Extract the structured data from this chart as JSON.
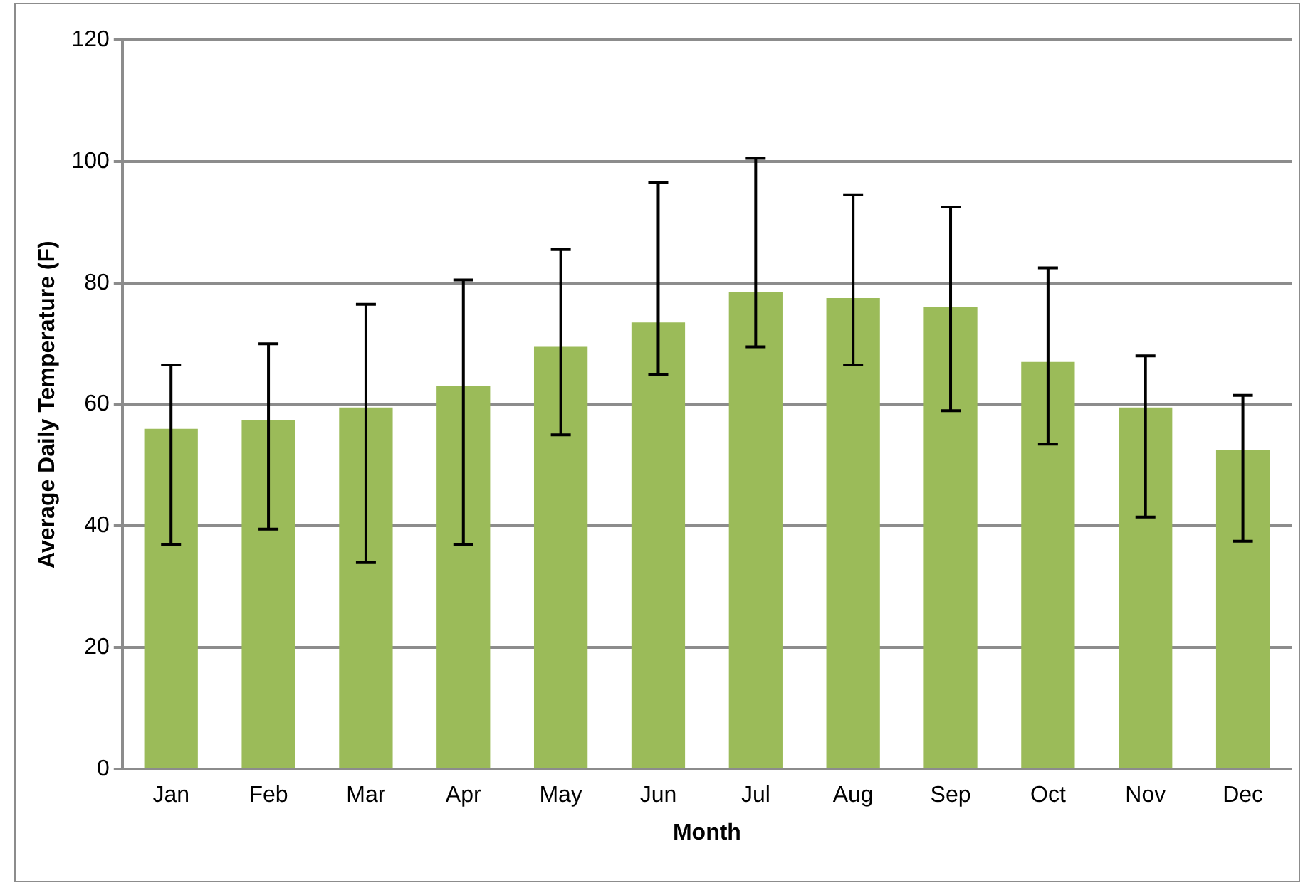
{
  "chart_data": {
    "type": "bar",
    "xlabel": "Month",
    "ylabel": "Average Daily Temperature (F)",
    "categories": [
      "Jan",
      "Feb",
      "Mar",
      "Apr",
      "May",
      "Jun",
      "Jul",
      "Aug",
      "Sep",
      "Oct",
      "Nov",
      "Dec"
    ],
    "values": [
      56,
      57.5,
      59.5,
      63,
      69.5,
      73.5,
      78.5,
      77.5,
      76,
      67,
      59.5,
      52.5
    ],
    "errors": [
      [
        37,
        66.5
      ],
      [
        39.5,
        70
      ],
      [
        34,
        76.5
      ],
      [
        37,
        80.5
      ],
      [
        55,
        85.5
      ],
      [
        65,
        96.5
      ],
      [
        69.5,
        100.5
      ],
      [
        66.5,
        94.5
      ],
      [
        59,
        92.5
      ],
      [
        53.5,
        82.5
      ],
      [
        41.5,
        68
      ],
      [
        37.5,
        61.5
      ]
    ],
    "color": "#9bbb59",
    "ylim": [
      0,
      120
    ],
    "yticks": [
      0,
      20,
      40,
      60,
      80,
      100,
      120
    ],
    "grid": "y",
    "legend": false
  }
}
